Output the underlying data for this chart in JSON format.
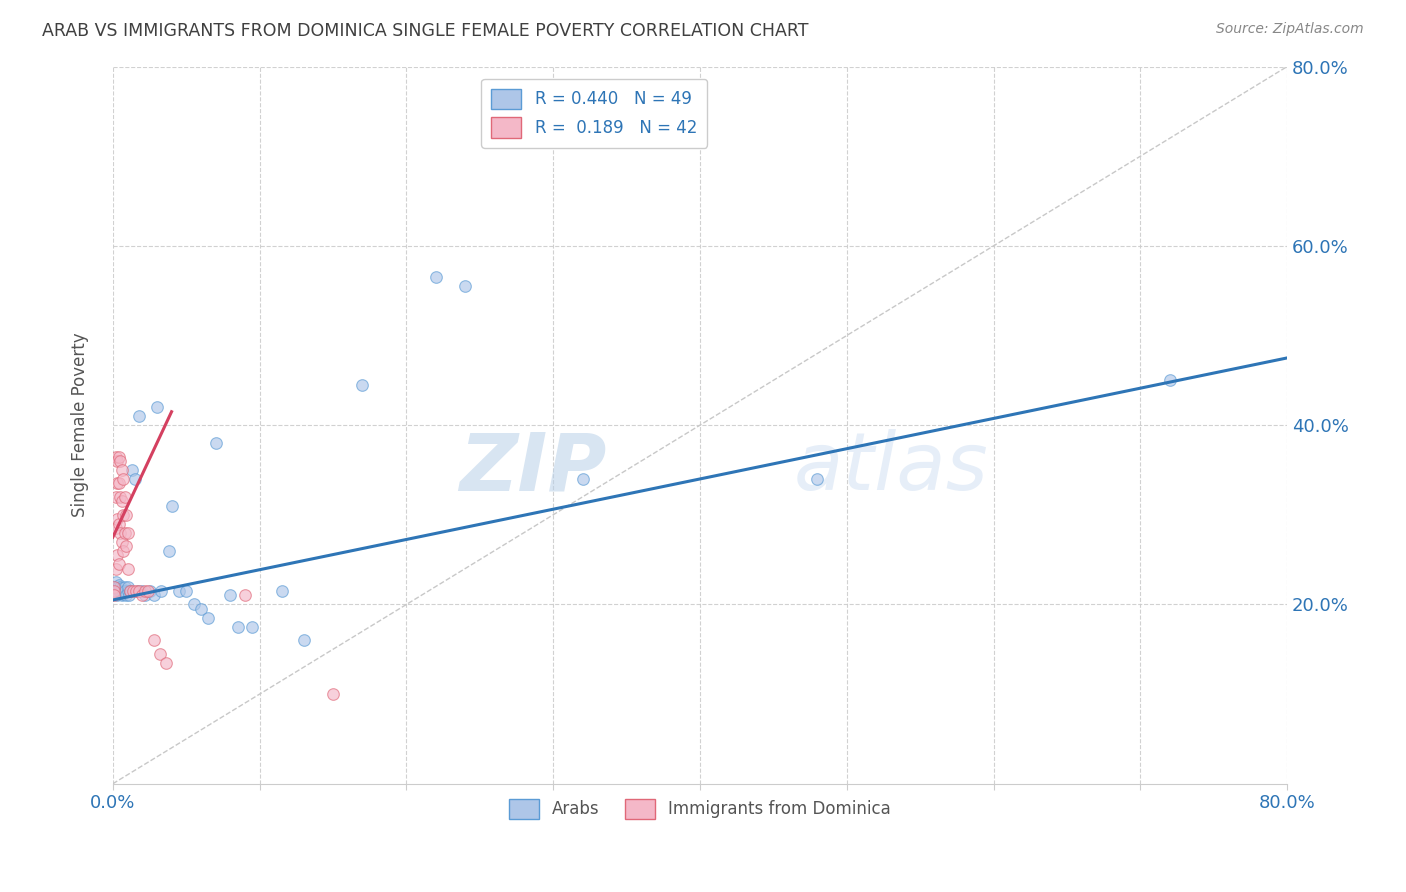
{
  "title": "ARAB VS IMMIGRANTS FROM DOMINICA SINGLE FEMALE POVERTY CORRELATION CHART",
  "source": "Source: ZipAtlas.com",
  "ylabel": "Single Female Poverty",
  "xlim": [
    0.0,
    0.8
  ],
  "ylim": [
    0.0,
    0.8
  ],
  "yticks": [
    0.2,
    0.4,
    0.6,
    0.8
  ],
  "ytick_labels": [
    "20.0%",
    "40.0%",
    "60.0%",
    "80.0%"
  ],
  "arab_color": "#aec6e8",
  "arab_edge_color": "#5b9bd5",
  "dominica_color": "#f4b8c8",
  "dominica_edge_color": "#e06878",
  "trend_arab_color": "#2e75b6",
  "trend_dominica_color": "#d44060",
  "diagonal_color": "#c8c8c8",
  "R_arab": 0.44,
  "N_arab": 49,
  "R_dominica": 0.189,
  "N_dominica": 42,
  "legend_entries": [
    "Arabs",
    "Immigrants from Dominica"
  ],
  "watermark_zip": "ZIP",
  "watermark_atlas": "atlas",
  "background_color": "#ffffff",
  "grid_color": "#cccccc",
  "title_color": "#404040",
  "axis_label_color": "#555555",
  "tick_label_color": "#2e75b6",
  "marker_size": 70,
  "marker_alpha": 0.65,
  "arab_x": [
    0.001,
    0.002,
    0.002,
    0.003,
    0.003,
    0.004,
    0.004,
    0.005,
    0.005,
    0.006,
    0.006,
    0.007,
    0.007,
    0.008,
    0.008,
    0.009,
    0.01,
    0.01,
    0.011,
    0.012,
    0.013,
    0.015,
    0.017,
    0.018,
    0.02,
    0.022,
    0.025,
    0.028,
    0.03,
    0.033,
    0.038,
    0.04,
    0.045,
    0.05,
    0.055,
    0.06,
    0.065,
    0.07,
    0.08,
    0.085,
    0.095,
    0.115,
    0.13,
    0.17,
    0.22,
    0.24,
    0.32,
    0.48,
    0.72
  ],
  "arab_y": [
    0.22,
    0.215,
    0.225,
    0.218,
    0.21,
    0.215,
    0.222,
    0.22,
    0.215,
    0.21,
    0.218,
    0.215,
    0.212,
    0.22,
    0.215,
    0.21,
    0.215,
    0.22,
    0.21,
    0.215,
    0.35,
    0.34,
    0.215,
    0.41,
    0.215,
    0.21,
    0.215,
    0.21,
    0.42,
    0.215,
    0.26,
    0.31,
    0.215,
    0.215,
    0.2,
    0.195,
    0.185,
    0.38,
    0.21,
    0.175,
    0.175,
    0.215,
    0.16,
    0.445,
    0.565,
    0.555,
    0.34,
    0.34,
    0.45
  ],
  "dominica_x": [
    0.001,
    0.001,
    0.001,
    0.002,
    0.002,
    0.002,
    0.002,
    0.003,
    0.003,
    0.003,
    0.003,
    0.004,
    0.004,
    0.004,
    0.004,
    0.005,
    0.005,
    0.005,
    0.006,
    0.006,
    0.006,
    0.007,
    0.007,
    0.007,
    0.008,
    0.008,
    0.009,
    0.009,
    0.01,
    0.01,
    0.012,
    0.014,
    0.016,
    0.018,
    0.02,
    0.022,
    0.024,
    0.028,
    0.032,
    0.036,
    0.09,
    0.15
  ],
  "dominica_y": [
    0.22,
    0.215,
    0.21,
    0.365,
    0.32,
    0.285,
    0.24,
    0.36,
    0.335,
    0.295,
    0.255,
    0.365,
    0.335,
    0.29,
    0.245,
    0.36,
    0.32,
    0.28,
    0.35,
    0.315,
    0.27,
    0.34,
    0.3,
    0.26,
    0.32,
    0.28,
    0.3,
    0.265,
    0.28,
    0.24,
    0.215,
    0.215,
    0.215,
    0.215,
    0.21,
    0.215,
    0.215,
    0.16,
    0.145,
    0.135,
    0.21,
    0.1
  ],
  "trend_arab_x0": 0.0,
  "trend_arab_y0": 0.205,
  "trend_arab_x1": 0.8,
  "trend_arab_y1": 0.475,
  "trend_dom_x0": 0.0,
  "trend_dom_y0": 0.275,
  "trend_dom_x1": 0.04,
  "trend_dom_y1": 0.415
}
